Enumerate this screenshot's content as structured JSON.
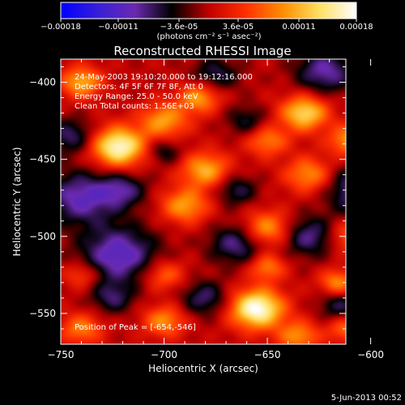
{
  "footer_date": "5-Jun-2013 00:52",
  "colorbar": {
    "unit_label": "(photons cm⁻² s⁻¹ asec⁻²)",
    "ticks": [
      "-0.00018",
      "-0.00011",
      "-3.6e-05",
      "3.6e-05",
      "0.00011",
      "0.00018"
    ],
    "range": [
      -0.00018,
      0.00018
    ],
    "colormap": [
      "#0000ff",
      "#3a1fd8",
      "#6a2ab0",
      "#000000",
      "#c00000",
      "#ff3000",
      "#ff8c00",
      "#ffe060",
      "#ffffff"
    ]
  },
  "chart_data": {
    "type": "heatmap",
    "title": "Reconstructed RHESSI Image",
    "xlabel": "Heliocentric X (arcsec)",
    "ylabel": "Heliocentric Y (arcsec)",
    "xlim": [
      -750,
      -612
    ],
    "ylim": [
      -570,
      -385
    ],
    "x_ticks": [
      -750,
      -700,
      -650,
      -600
    ],
    "x_tick_labels": [
      "−750",
      "−700",
      "−650",
      "−600"
    ],
    "y_ticks": [
      -400,
      -450,
      -500,
      -550
    ],
    "y_tick_labels": [
      "−400",
      "−450",
      "−500",
      "−550"
    ],
    "annotations": [
      "24-May-2003 19:10:20.000 to 19:12:16.000",
      "Detectors: 4F 5F 6F 7F 8F, Att 0",
      "Energy Range: 25.0 - 50.0 keV",
      "Clean    Total counts: 1.56E+03",
      "Position of Peak = [-654,-546]"
    ],
    "peak": {
      "x": -654,
      "y": -546
    },
    "sources": [
      {
        "x": -655,
        "y": -547,
        "amp": 1.0,
        "s": 9
      },
      {
        "x": -722,
        "y": -442,
        "amp": 0.95,
        "s": 9
      },
      {
        "x": -632,
        "y": -420,
        "amp": 0.75,
        "s": 8
      },
      {
        "x": -683,
        "y": -410,
        "amp": 0.55,
        "s": 7
      },
      {
        "x": -700,
        "y": -425,
        "amp": 0.55,
        "s": 8
      },
      {
        "x": -680,
        "y": -457,
        "amp": 0.6,
        "s": 8
      },
      {
        "x": -650,
        "y": -495,
        "amp": 0.55,
        "s": 8
      },
      {
        "x": -690,
        "y": -480,
        "amp": 0.55,
        "s": 8
      },
      {
        "x": -740,
        "y": -400,
        "amp": 0.6,
        "s": 7
      },
      {
        "x": -650,
        "y": -438,
        "amp": 0.45,
        "s": 7
      },
      {
        "x": -610,
        "y": -438,
        "amp": 0.55,
        "s": 7
      },
      {
        "x": -630,
        "y": -460,
        "amp": 0.5,
        "s": 8
      },
      {
        "x": -700,
        "y": -555,
        "amp": 0.5,
        "s": 7
      },
      {
        "x": -700,
        "y": -525,
        "amp": 0.4,
        "s": 7
      },
      {
        "x": -740,
        "y": -560,
        "amp": 0.45,
        "s": 7
      },
      {
        "x": -740,
        "y": -525,
        "amp": 0.35,
        "s": 6
      },
      {
        "x": -616,
        "y": -530,
        "amp": 0.5,
        "s": 6
      },
      {
        "x": -610,
        "y": -500,
        "amp": 0.4,
        "s": 7
      },
      {
        "x": -635,
        "y": -565,
        "amp": 0.5,
        "s": 7
      },
      {
        "x": -612,
        "y": -560,
        "amp": 0.4,
        "s": 6
      },
      {
        "x": -650,
        "y": -520,
        "amp": 0.45,
        "s": 6
      },
      {
        "x": -722,
        "y": -512,
        "amp": -0.6,
        "s": 13
      },
      {
        "x": -740,
        "y": -475,
        "amp": -0.55,
        "s": 12
      },
      {
        "x": -622,
        "y": -393,
        "amp": -0.5,
        "s": 10
      },
      {
        "x": -605,
        "y": -470,
        "amp": -0.55,
        "s": 11
      },
      {
        "x": -745,
        "y": -435,
        "amp": -0.4,
        "s": 8
      },
      {
        "x": -675,
        "y": -395,
        "amp": -0.35,
        "s": 8
      },
      {
        "x": -720,
        "y": -470,
        "amp": -0.4,
        "s": 8
      },
      {
        "x": -665,
        "y": -505,
        "amp": -0.45,
        "s": 9
      },
      {
        "x": -630,
        "y": -500,
        "amp": -0.45,
        "s": 9
      },
      {
        "x": -665,
        "y": -470,
        "amp": -0.35,
        "s": 7
      },
      {
        "x": -680,
        "y": -540,
        "amp": -0.4,
        "s": 8
      },
      {
        "x": -725,
        "y": -540,
        "amp": -0.35,
        "s": 7
      },
      {
        "x": -615,
        "y": -545,
        "amp": -0.35,
        "s": 7
      },
      {
        "x": -660,
        "y": -425,
        "amp": -0.3,
        "s": 7
      },
      {
        "x": -700,
        "y": -445,
        "amp": -0.3,
        "s": 6
      }
    ]
  }
}
